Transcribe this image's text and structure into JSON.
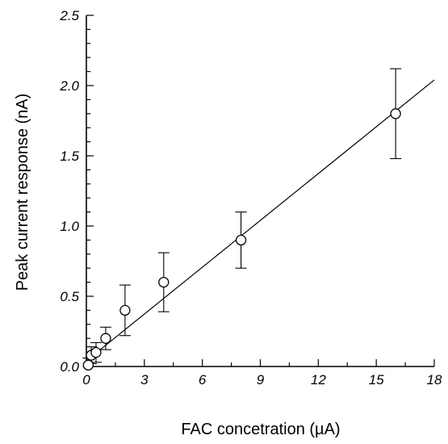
{
  "chart_data": {
    "type": "scatter",
    "title": "",
    "xlabel": "FAC concetration (µA)",
    "ylabel": "Peak current response (nA)",
    "xlim": [
      0,
      18
    ],
    "ylim": [
      0,
      2.5
    ],
    "x_ticks": [
      "0",
      "3",
      "6",
      "9",
      "12",
      "15",
      "18"
    ],
    "y_ticks": [
      "0.0",
      "0.5",
      "1.0",
      "1.5",
      "2.0",
      "2.5"
    ],
    "grid": false,
    "legend": "none",
    "series": [
      {
        "x": [
          0.1,
          0.25,
          0.5,
          1,
          2,
          4,
          8,
          16
        ],
        "y": [
          0.01,
          0.08,
          0.1,
          0.2,
          0.4,
          0.6,
          0.9,
          1.8
        ],
        "error": [
          0.05,
          0.06,
          0.07,
          0.08,
          0.18,
          0.21,
          0.2,
          0.32
        ]
      }
    ],
    "fit_line": {
      "x": [
        0,
        18
      ],
      "y": [
        0.04,
        2.04
      ]
    }
  }
}
